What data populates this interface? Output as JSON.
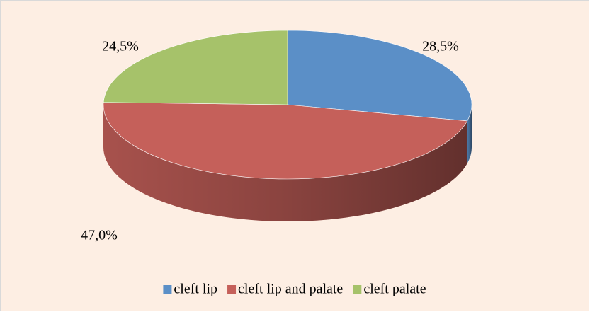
{
  "chart_data": {
    "type": "pie",
    "categories": [
      "cleft lip",
      "cleft lip and palate",
      "cleft palate"
    ],
    "values": [
      28.5,
      47.0,
      24.5
    ],
    "value_labels": [
      "28,5%",
      "47,0%",
      "24,5%"
    ],
    "colors": [
      "#5b8fc7",
      "#c5605a",
      "#a6c26a"
    ],
    "legend": "bottom"
  }
}
